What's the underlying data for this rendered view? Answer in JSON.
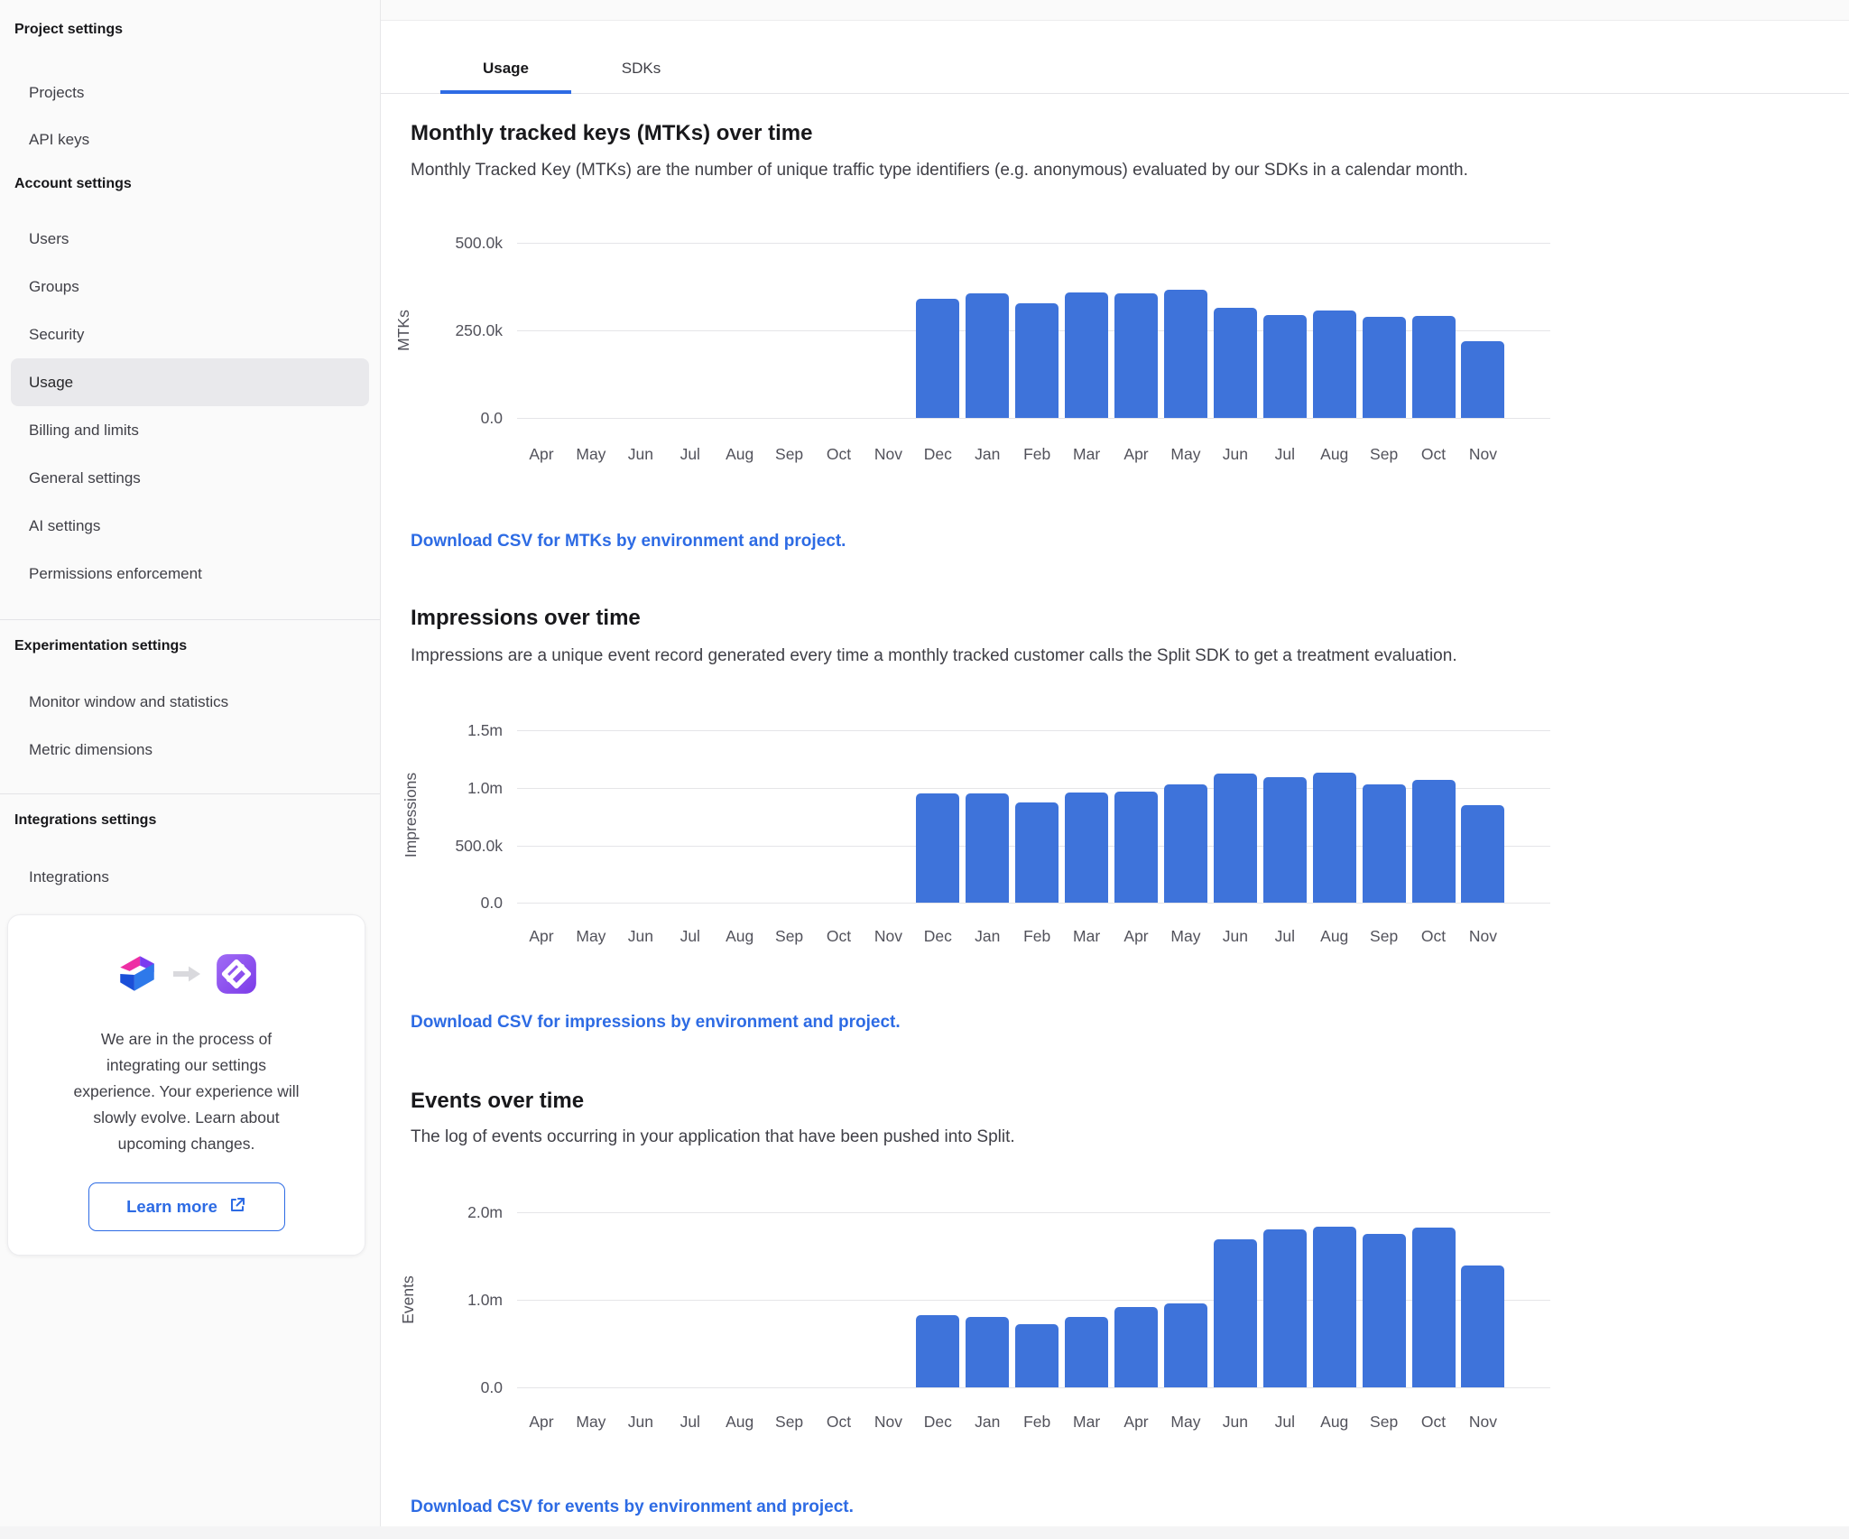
{
  "sidebar": {
    "sections": [
      {
        "header": "Project settings",
        "items": [
          {
            "label": "Projects"
          },
          {
            "label": "API keys"
          }
        ]
      },
      {
        "header": "Account settings",
        "items": [
          {
            "label": "Users"
          },
          {
            "label": "Groups"
          },
          {
            "label": "Security"
          },
          {
            "label": "Usage",
            "selected": true
          },
          {
            "label": "Billing and limits"
          },
          {
            "label": "General settings"
          },
          {
            "label": "AI settings"
          },
          {
            "label": "Permissions enforcement"
          }
        ]
      },
      {
        "header": "Experimentation settings",
        "items": [
          {
            "label": "Monitor window and statistics"
          },
          {
            "label": "Metric dimensions"
          }
        ]
      },
      {
        "header": "Integrations settings",
        "items": [
          {
            "label": "Integrations"
          }
        ]
      }
    ],
    "promo_card": {
      "icons": [
        "split-logo",
        "arrow-right-icon",
        "fme-logo"
      ],
      "message": "We are in the process of integrating our settings experience. Your experience will slowly evolve. Learn about upcoming changes.",
      "button_label": "Learn more"
    }
  },
  "tabs": [
    {
      "label": "Usage",
      "active": true
    },
    {
      "label": "SDKs",
      "active": false
    }
  ],
  "accent_color": "#2d6be4",
  "chart_data": [
    {
      "type": "bar",
      "title": "Monthly tracked keys (MTKs) over time",
      "description": "Monthly Tracked Key (MTKs) are the number of unique traffic type identifiers (e.g. anonymous) evaluated by our SDKs in a calendar month.",
      "ylabel": "MTKs",
      "xlabel": "",
      "categories": [
        "Apr",
        "May",
        "Jun",
        "Jul",
        "Aug",
        "Sep",
        "Oct",
        "Nov",
        "Dec",
        "Jan",
        "Feb",
        "Mar",
        "Apr",
        "May",
        "Jun",
        "Jul",
        "Aug",
        "Sep",
        "Oct",
        "Nov"
      ],
      "values_start_index": 8,
      "values": [
        340000,
        356000,
        327000,
        358000,
        356000,
        366000,
        314000,
        294000,
        307000,
        289000,
        291000,
        219000
      ],
      "ytick_labels_top_down": [
        "500.0k",
        "250.0k",
        "0.0"
      ],
      "ylim": [
        0,
        500000
      ],
      "grid": true,
      "bar_color": "#3e73da",
      "csv_link": "Download CSV for MTKs by environment and project."
    },
    {
      "type": "bar",
      "title": "Impressions over time",
      "description": "Impressions are a unique event record generated every time a monthly tracked customer calls the Split SDK to get a treatment evaluation.",
      "ylabel": "Impressions",
      "xlabel": "",
      "categories": [
        "Apr",
        "May",
        "Jun",
        "Jul",
        "Aug",
        "Sep",
        "Oct",
        "Nov",
        "Dec",
        "Jan",
        "Feb",
        "Mar",
        "Apr",
        "May",
        "Jun",
        "Jul",
        "Aug",
        "Sep",
        "Oct",
        "Nov"
      ],
      "values_start_index": 8,
      "values": [
        950000,
        950000,
        875000,
        955000,
        965000,
        1030000,
        1120000,
        1090000,
        1130000,
        1030000,
        1070000,
        845000
      ],
      "ytick_labels_top_down": [
        "1.5m",
        "1.0m",
        "500.0k",
        "0.0"
      ],
      "ylim": [
        0,
        1500000
      ],
      "grid": true,
      "bar_color": "#3e73da",
      "csv_link": "Download CSV for impressions by environment and project."
    },
    {
      "type": "bar",
      "title": "Events over time",
      "description": "The log of events occurring in your application that have been pushed into Split.",
      "ylabel": "Events",
      "xlabel": "",
      "categories": [
        "Apr",
        "May",
        "Jun",
        "Jul",
        "Aug",
        "Sep",
        "Oct",
        "Nov",
        "Dec",
        "Jan",
        "Feb",
        "Mar",
        "Apr",
        "May",
        "Jun",
        "Jul",
        "Aug",
        "Sep",
        "Oct",
        "Nov"
      ],
      "values_start_index": 8,
      "values": [
        820000,
        800000,
        720000,
        800000,
        920000,
        960000,
        1690000,
        1800000,
        1830000,
        1750000,
        1820000,
        1390000
      ],
      "ytick_labels_top_down": [
        "2.0m",
        "1.0m",
        "0.0"
      ],
      "ylim": [
        0,
        2000000
      ],
      "grid": true,
      "bar_color": "#3e73da",
      "csv_link": "Download CSV for events by environment and project."
    }
  ]
}
